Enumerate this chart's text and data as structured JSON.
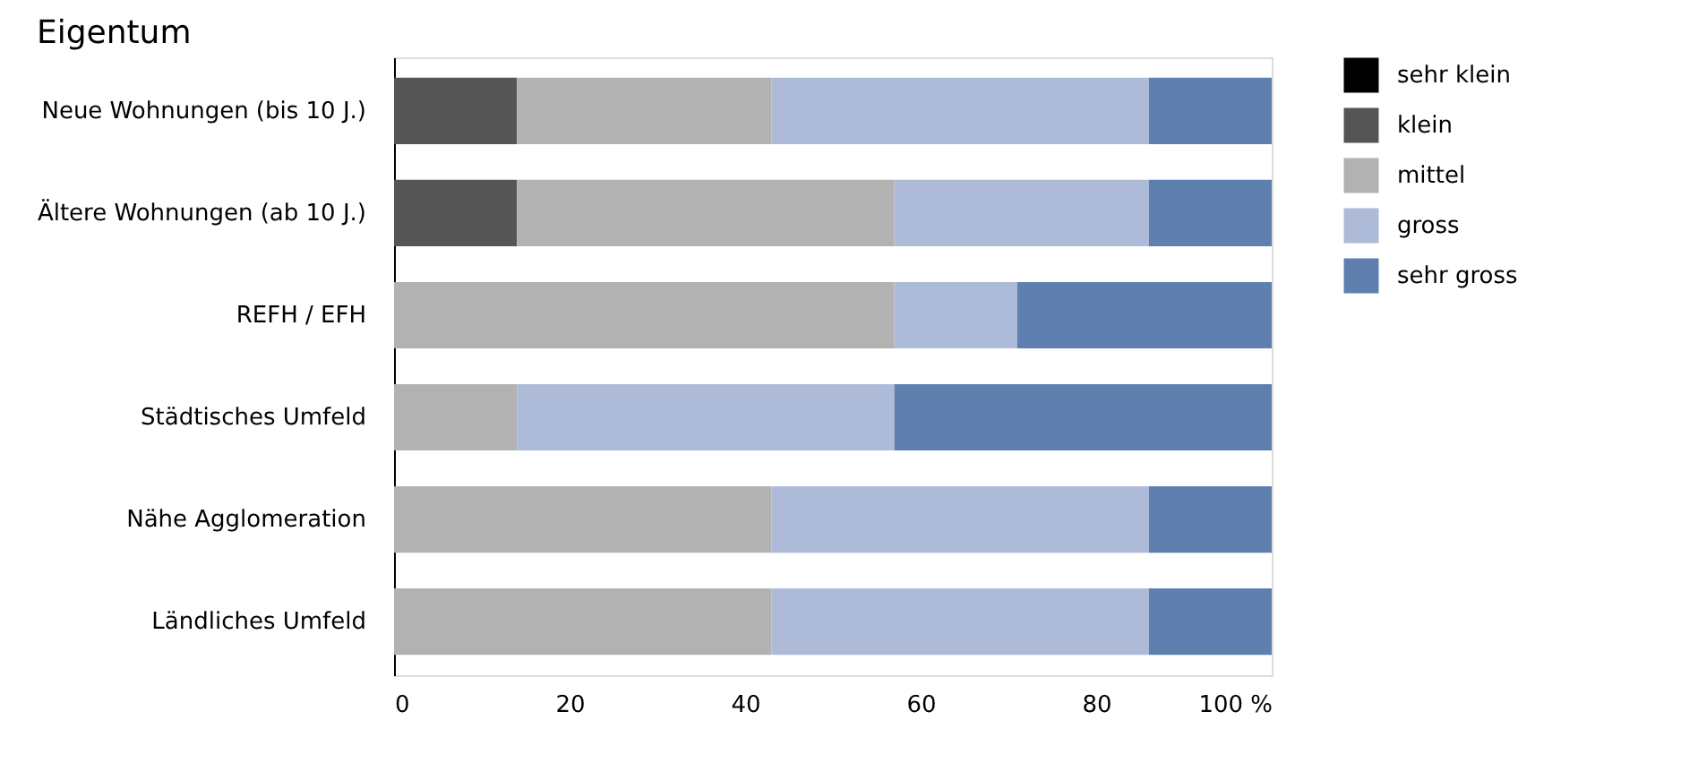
{
  "chart_data": {
    "type": "bar",
    "orientation": "horizontal",
    "stacked": true,
    "title": "Eigentum",
    "categories": [
      "Neue Wohnungen (bis 10 J.)",
      "Ältere Wohnungen (ab 10 J.)",
      "REFH / EFH",
      "Städtisches Umfeld",
      "Nähe Agglomeration",
      "Ländliches Umfeld"
    ],
    "series": [
      {
        "name": "sehr klein",
        "color": "#000000",
        "values": [
          0,
          0,
          0,
          0,
          0,
          0
        ]
      },
      {
        "name": "klein",
        "color": "#555555",
        "values": [
          14,
          14,
          0,
          0,
          0,
          0
        ]
      },
      {
        "name": "mittel",
        "color": "#b2b2b2",
        "values": [
          29,
          43,
          57,
          14,
          43,
          43
        ]
      },
      {
        "name": "gross",
        "color": "#aebbd8",
        "values": [
          43,
          29,
          14,
          43,
          43,
          43
        ]
      },
      {
        "name": "sehr gross",
        "color": "#5f80ae",
        "values": [
          14,
          14,
          29,
          43,
          14,
          14
        ]
      }
    ],
    "xlim": [
      0,
      100
    ],
    "xticks": [
      0,
      20,
      40,
      60,
      80,
      {
        "value": 100,
        "label": "100 %"
      }
    ],
    "grid": false,
    "legend": "top right"
  }
}
